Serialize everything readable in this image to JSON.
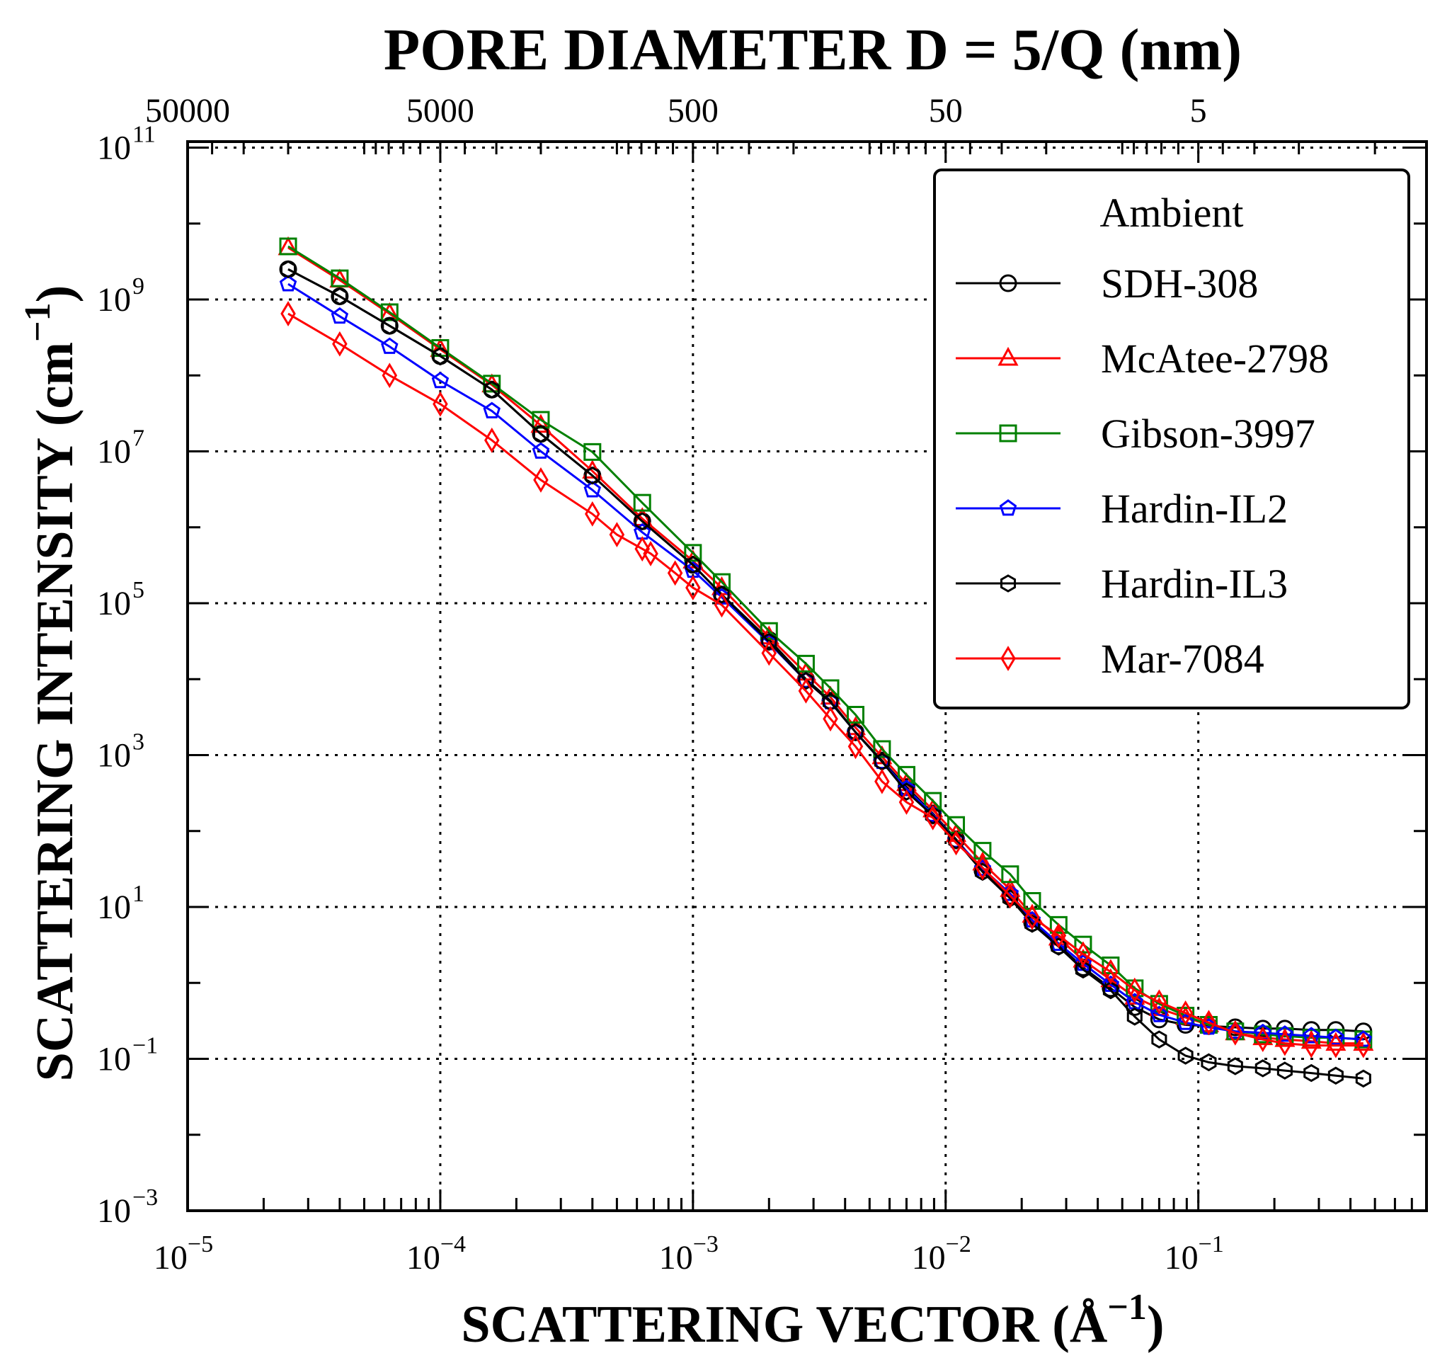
{
  "chart_data": {
    "type": "line",
    "title": "PORE DIAMETER D = 5/Q (nm)",
    "xlabel_main": "SCATTERING VECTOR (Å",
    "xlabel_sup": "−1",
    "xlabel_close": ")",
    "ylabel_main": "SCATTERING INTENSITY (cm",
    "ylabel_sup": "−1",
    "ylabel_close": ")",
    "x_scale": "log",
    "y_scale": "log",
    "xlim": [
      1e-05,
      0.8
    ],
    "ylim": [
      0.001,
      120000000000.0
    ],
    "grid": true,
    "x_ticks": [
      {
        "value": 1e-05,
        "base": "10",
        "exp": "−5"
      },
      {
        "value": 0.0001,
        "base": "10",
        "exp": "−4"
      },
      {
        "value": 0.001,
        "base": "10",
        "exp": "−3"
      },
      {
        "value": 0.01,
        "base": "10",
        "exp": "−2"
      },
      {
        "value": 0.1,
        "base": "10",
        "exp": "−1"
      }
    ],
    "y_ticks": [
      {
        "value": 0.001,
        "base": "10",
        "exp": "−3"
      },
      {
        "value": 0.1,
        "base": "10",
        "exp": "−1"
      },
      {
        "value": 10.0,
        "base": "10",
        "exp": "1"
      },
      {
        "value": 1000.0,
        "base": "10",
        "exp": "3"
      },
      {
        "value": 100000.0,
        "base": "10",
        "exp": "5"
      },
      {
        "value": 10000000.0,
        "base": "10",
        "exp": "7"
      },
      {
        "value": 1000000000.0,
        "base": "10",
        "exp": "9"
      },
      {
        "value": 100000000000.0,
        "base": "10",
        "exp": "11"
      }
    ],
    "top_ticks": [
      {
        "label": "50000",
        "q": 1e-05
      },
      {
        "label": "5000",
        "q": 0.0001
      },
      {
        "label": "500",
        "q": 0.001
      },
      {
        "label": "50",
        "q": 0.01
      },
      {
        "label": "5",
        "q": 0.1
      }
    ],
    "legend": {
      "title": "Ambient",
      "location": "top-right"
    },
    "series": [
      {
        "name": "SDH-308",
        "color": "#000000",
        "marker": "circle",
        "x": [
          2.5e-05,
          4e-05,
          6.3e-05,
          0.0001,
          0.00016,
          0.00025,
          0.0004,
          0.00063,
          0.001,
          0.0013,
          0.002,
          0.0028,
          0.0035,
          0.0044,
          0.0056,
          0.007,
          0.0089,
          0.011,
          0.014,
          0.018,
          0.022,
          0.028,
          0.035,
          0.045,
          0.056,
          0.07,
          0.089,
          0.11,
          0.14,
          0.18,
          0.22,
          0.28,
          0.35,
          0.45
        ],
        "y": [
          2500000000.0,
          1100000000.0,
          450000000.0,
          180000000.0,
          65000000.0,
          17000000.0,
          4800000.0,
          1200000.0,
          320000.0,
          130000.0,
          33000.0,
          10000.0,
          5200.0,
          2000.0,
          850,
          380,
          170,
          78,
          30,
          14,
          6.2,
          3.1,
          1.6,
          0.85,
          0.48,
          0.33,
          0.28,
          0.27,
          0.26,
          0.25,
          0.25,
          0.24,
          0.24,
          0.23
        ]
      },
      {
        "name": "McAtee-2798",
        "color": "#ff0000",
        "marker": "triangle",
        "x": [
          2.5e-05,
          4e-05,
          6.3e-05,
          0.0001,
          0.00016,
          0.00025,
          0.0004,
          0.00063,
          0.001,
          0.0013,
          0.002,
          0.0028,
          0.0035,
          0.0044,
          0.0056,
          0.007,
          0.0089,
          0.011,
          0.014,
          0.018,
          0.022,
          0.028,
          0.035,
          0.045,
          0.056,
          0.07,
          0.089,
          0.11,
          0.14,
          0.18,
          0.22,
          0.28,
          0.35,
          0.45
        ],
        "y": [
          4800000000.0,
          1800000000.0,
          650000000.0,
          220000000.0,
          75000000.0,
          22000000.0,
          5500000.0,
          1300000.0,
          360000.0,
          160000.0,
          36000.0,
          12000.0,
          5800.0,
          2300.0,
          950,
          420,
          190,
          90,
          38,
          17,
          7.8,
          3.9,
          2.0,
          1.1,
          0.65,
          0.46,
          0.35,
          0.28,
          0.22,
          0.19,
          0.18,
          0.17,
          0.16,
          0.16
        ]
      },
      {
        "name": "Gibson-3997",
        "color": "#008000",
        "marker": "square",
        "x": [
          2.5e-05,
          4e-05,
          6.3e-05,
          0.0001,
          0.00016,
          0.00025,
          0.0004,
          0.00063,
          0.001,
          0.0013,
          0.002,
          0.0028,
          0.0035,
          0.0044,
          0.0056,
          0.007,
          0.0089,
          0.011,
          0.014,
          0.018,
          0.022,
          0.028,
          0.035,
          0.045,
          0.056,
          0.07,
          0.089,
          0.11,
          0.14,
          0.18,
          0.22,
          0.28,
          0.35,
          0.45
        ],
        "y": [
          5000000000.0,
          1900000000.0,
          680000000.0,
          230000000.0,
          78000000.0,
          26000000.0,
          9800000.0,
          2100000.0,
          460000.0,
          190000.0,
          43000.0,
          16000.0,
          7600.0,
          3400.0,
          1200.0,
          550,
          250,
          120,
          55,
          27,
          12,
          5.8,
          3.2,
          1.7,
          0.85,
          0.53,
          0.37,
          0.28,
          0.23,
          0.21,
          0.2,
          0.19,
          0.19,
          0.18
        ]
      },
      {
        "name": "Hardin-IL2",
        "color": "#0000ff",
        "marker": "pentagon",
        "x": [
          2.5e-05,
          4e-05,
          6.3e-05,
          0.0001,
          0.00016,
          0.00025,
          0.0004,
          0.00063,
          0.001,
          0.0013,
          0.002,
          0.0028,
          0.0035,
          0.0044,
          0.0056,
          0.007,
          0.0089,
          0.011,
          0.014,
          0.018,
          0.022,
          0.028,
          0.035,
          0.045,
          0.056,
          0.07,
          0.089,
          0.11,
          0.14,
          0.18,
          0.22,
          0.28,
          0.35,
          0.45
        ],
        "y": [
          1600000000.0,
          600000000.0,
          240000000.0,
          85000000.0,
          34000000.0,
          10000000.0,
          3100000.0,
          860000.0,
          270000.0,
          120000.0,
          30000.0,
          9500.0,
          5000.0,
          2000.0,
          820,
          360,
          165,
          75,
          32,
          15,
          6.7,
          3.3,
          1.8,
          0.95,
          0.56,
          0.38,
          0.3,
          0.26,
          0.23,
          0.22,
          0.21,
          0.2,
          0.19,
          0.18
        ]
      },
      {
        "name": "Hardin-IL3",
        "color": "#000000",
        "marker": "hexagon",
        "x": [
          2.5e-05,
          4e-05,
          6.3e-05,
          0.0001,
          0.00016,
          0.00025,
          0.0004,
          0.00063,
          0.001,
          0.0013,
          0.002,
          0.0028,
          0.0035,
          0.0044,
          0.0056,
          0.007,
          0.0089,
          0.011,
          0.014,
          0.018,
          0.022,
          0.028,
          0.035,
          0.045,
          0.056,
          0.07,
          0.089,
          0.11,
          0.14,
          0.18,
          0.22,
          0.28,
          0.35,
          0.45
        ],
        "y": [
          2500000000.0,
          1100000000.0,
          450000000.0,
          180000000.0,
          65000000.0,
          17000000.0,
          4800000.0,
          1200000.0,
          320000.0,
          130000.0,
          31000.0,
          9500.0,
          5000.0,
          2000.0,
          820,
          330,
          160,
          75,
          29,
          13,
          6.0,
          3.0,
          1.5,
          0.8,
          0.36,
          0.18,
          0.11,
          0.09,
          0.08,
          0.075,
          0.07,
          0.065,
          0.06,
          0.055
        ]
      },
      {
        "name": "Mar-7084",
        "color": "#ff0000",
        "marker": "diamond",
        "x": [
          2.5e-05,
          4e-05,
          6.3e-05,
          0.0001,
          0.00016,
          0.00025,
          0.0004,
          0.0005,
          0.00063,
          0.00068,
          0.00085,
          0.001,
          0.0013,
          0.002,
          0.0028,
          0.0035,
          0.0044,
          0.0056,
          0.007,
          0.0089,
          0.011,
          0.014,
          0.018,
          0.022,
          0.028,
          0.035,
          0.045,
          0.056,
          0.07,
          0.089,
          0.11,
          0.14,
          0.18,
          0.22,
          0.28,
          0.35,
          0.45
        ],
        "y": [
          650000000.0,
          260000000.0,
          100000000.0,
          42000000.0,
          14000000.0,
          4200000.0,
          1500000.0,
          800000.0,
          520000.0,
          450000.0,
          250000.0,
          160000.0,
          95000.0,
          22000.0,
          7000.0,
          3000.0,
          1300.0,
          450,
          240,
          150,
          70,
          33,
          14,
          7.3,
          4.2,
          2.4,
          1.4,
          0.8,
          0.56,
          0.4,
          0.3,
          0.22,
          0.18,
          0.16,
          0.15,
          0.15,
          0.15
        ]
      }
    ]
  }
}
